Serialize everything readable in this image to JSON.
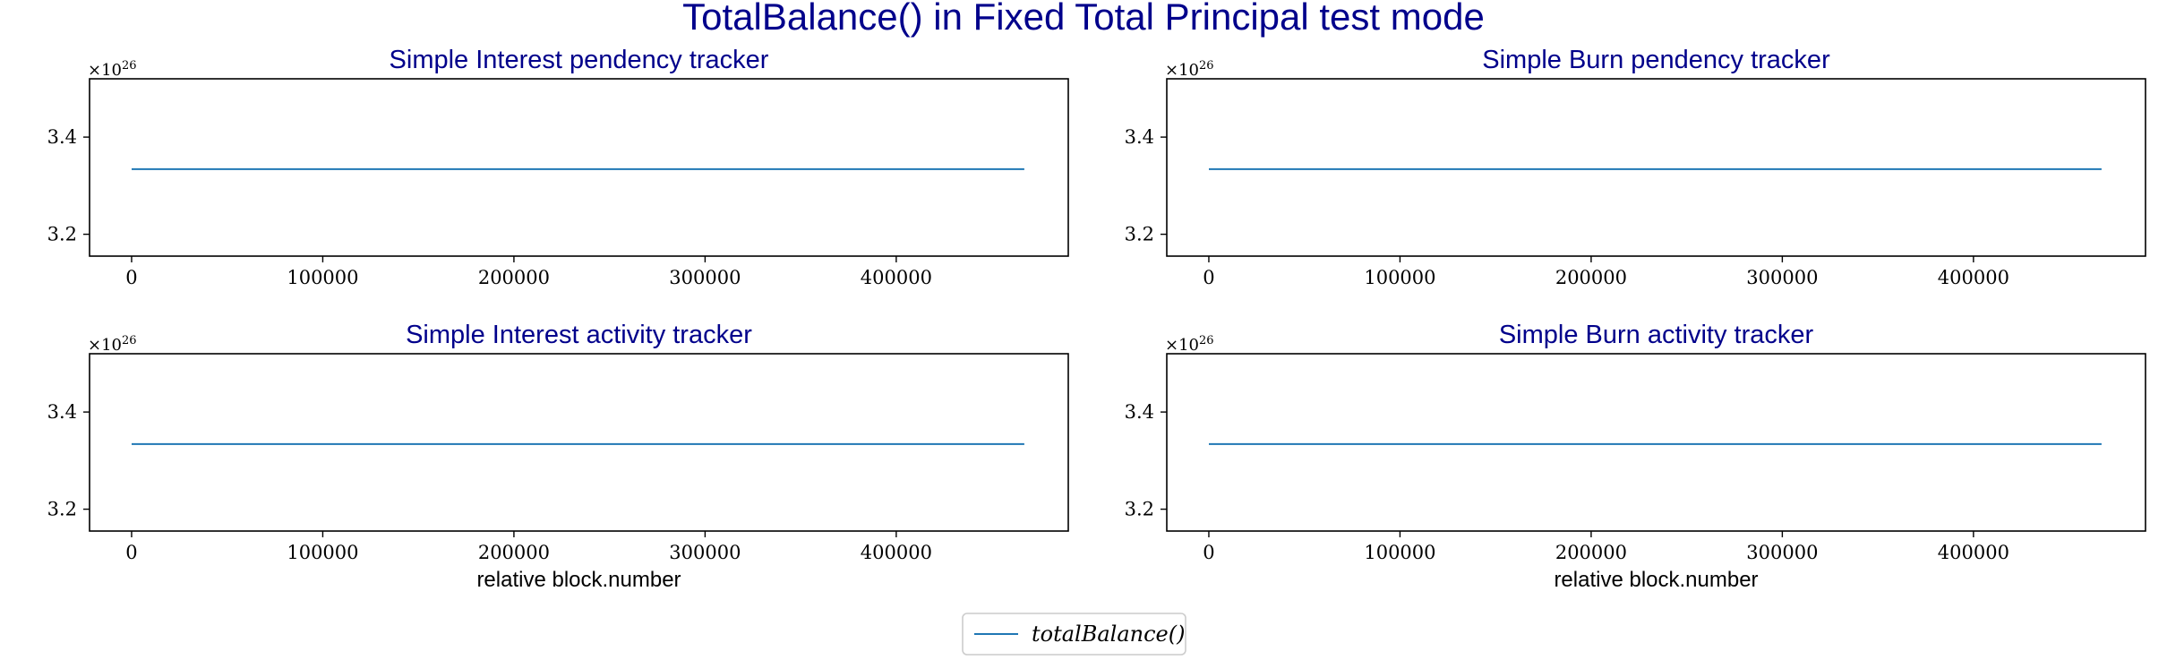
{
  "figure": {
    "title": "TotalBalance() in Fixed Total Principal test mode",
    "legend_placement": "bottom-center",
    "colors": {
      "title": "#00008b",
      "series": "#1f77b4"
    }
  },
  "legend": {
    "label": "totalBalance()"
  },
  "chart_data": [
    {
      "type": "line",
      "title": "Simple Interest pendency tracker",
      "xlabel": "",
      "ylabel": "",
      "y_offset_label": "×10",
      "y_offset_exp": "26",
      "xlim": [
        -22000,
        490000
      ],
      "ylim": [
        3.155,
        3.52
      ],
      "xticks": [
        0,
        100000,
        200000,
        300000,
        400000
      ],
      "xtick_labels": [
        "0",
        "100000",
        "200000",
        "300000",
        "400000"
      ],
      "yticks": [
        3.2,
        3.4
      ],
      "ytick_labels": [
        "3.2",
        "3.4"
      ],
      "grid": false,
      "series": [
        {
          "name": "totalBalance()",
          "x": [
            0,
            467000
          ],
          "values": [
            3.334,
            3.334
          ]
        }
      ]
    },
    {
      "type": "line",
      "title": "Simple Burn pendency tracker",
      "xlabel": "",
      "ylabel": "",
      "y_offset_label": "×10",
      "y_offset_exp": "26",
      "xlim": [
        -22000,
        490000
      ],
      "ylim": [
        3.155,
        3.52
      ],
      "xticks": [
        0,
        100000,
        200000,
        300000,
        400000
      ],
      "xtick_labels": [
        "0",
        "100000",
        "200000",
        "300000",
        "400000"
      ],
      "yticks": [
        3.2,
        3.4
      ],
      "ytick_labels": [
        "3.2",
        "3.4"
      ],
      "grid": false,
      "series": [
        {
          "name": "totalBalance()",
          "x": [
            0,
            467000
          ],
          "values": [
            3.334,
            3.334
          ]
        }
      ]
    },
    {
      "type": "line",
      "title": "Simple Interest activity tracker",
      "xlabel": "relative block.number",
      "ylabel": "",
      "y_offset_label": "×10",
      "y_offset_exp": "26",
      "xlim": [
        -22000,
        490000
      ],
      "ylim": [
        3.155,
        3.52
      ],
      "xticks": [
        0,
        100000,
        200000,
        300000,
        400000
      ],
      "xtick_labels": [
        "0",
        "100000",
        "200000",
        "300000",
        "400000"
      ],
      "yticks": [
        3.2,
        3.4
      ],
      "ytick_labels": [
        "3.2",
        "3.4"
      ],
      "grid": false,
      "series": [
        {
          "name": "totalBalance()",
          "x": [
            0,
            467000
          ],
          "values": [
            3.334,
            3.334
          ]
        }
      ]
    },
    {
      "type": "line",
      "title": "Simple Burn activity tracker",
      "xlabel": "relative block.number",
      "ylabel": "",
      "y_offset_label": "×10",
      "y_offset_exp": "26",
      "xlim": [
        -22000,
        490000
      ],
      "ylim": [
        3.155,
        3.52
      ],
      "xticks": [
        0,
        100000,
        200000,
        300000,
        400000
      ],
      "xtick_labels": [
        "0",
        "100000",
        "200000",
        "300000",
        "400000"
      ],
      "yticks": [
        3.2,
        3.4
      ],
      "ytick_labels": [
        "3.2",
        "3.4"
      ],
      "grid": false,
      "series": [
        {
          "name": "totalBalance()",
          "x": [
            0,
            467000
          ],
          "values": [
            3.334,
            3.334
          ]
        }
      ]
    }
  ]
}
